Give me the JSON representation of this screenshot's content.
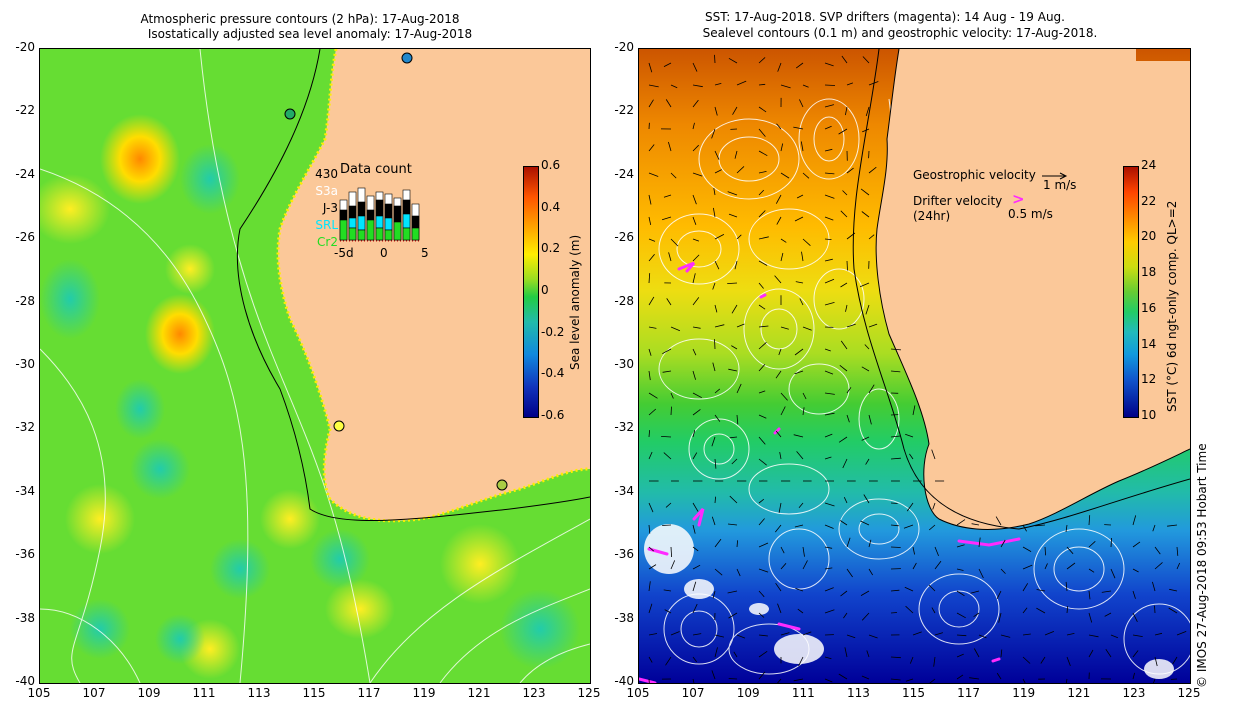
{
  "left_panel": {
    "title_line1": "Atmospheric pressure contours (2 hPa): 17-Aug-2018",
    "title_line2": "Isostatically adjusted sea level anomaly: 17-Aug-2018",
    "lat_ticks": [
      "-20",
      "-22",
      "-24",
      "-26",
      "-28",
      "-30",
      "-32",
      "-34",
      "-36",
      "-38",
      "-40"
    ],
    "lon_ticks": [
      "105",
      "107",
      "109",
      "111",
      "113",
      "115",
      "117",
      "119",
      "121",
      "123",
      "125"
    ],
    "colorbar": {
      "label": "Sea level anomaly (m)",
      "ticks": [
        "0.6",
        "0.4",
        "0.2",
        "0",
        "-0.2",
        "-0.4",
        "-0.6"
      ]
    },
    "data_count": {
      "title": "Data count",
      "satellites": [
        "430",
        "S3a",
        "J-3",
        "SRL",
        "Cr2"
      ],
      "satellite_colors": [
        "#000000",
        "#ffffff",
        "#000000",
        "#00e5ff",
        "#22dd22"
      ],
      "axis_labels": [
        "-5d",
        "0",
        "5"
      ]
    }
  },
  "right_panel": {
    "title_line1": "SST: 17-Aug-2018. SVP drifters (magenta): 14 Aug - 19 Aug.",
    "title_line2": "Sealevel contours (0.1 m) and geostrophic velocity: 17-Aug-2018.",
    "lat_ticks": [
      "-20",
      "-22",
      "-24",
      "-26",
      "-28",
      "-30",
      "-32",
      "-34",
      "-36",
      "-38",
      "-40"
    ],
    "lon_ticks": [
      "105",
      "107",
      "109",
      "111",
      "113",
      "115",
      "117",
      "119",
      "121",
      "123",
      "125"
    ],
    "colorbar": {
      "label": "SST (°C) 6d ngt-only comp. QL>=2",
      "ticks": [
        "24",
        "22",
        "20",
        "18",
        "16",
        "14",
        "12",
        "10"
      ]
    },
    "legend": {
      "geostrophic": "Geostrophic velocity",
      "geostrophic_scale": "1 m/s",
      "drifter_line1": "Drifter velocity",
      "drifter_line2": "(24hr)",
      "drifter_scale": "0.5 m/s",
      "drifter_symbol": ">"
    },
    "credit": "© IMOS 27-Aug-2018 09:53 Hobart Time"
  },
  "colors": {
    "land": "#fbc899",
    "drifter": "#ff2bff",
    "ocean_green": "#44cc44"
  }
}
